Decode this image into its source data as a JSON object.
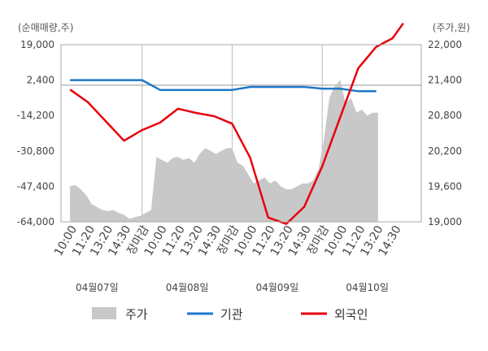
{
  "chart_data": {
    "type": "line",
    "left_axis_title": "(순매매량,주)",
    "right_axis_title": "(주가,원)",
    "left_ticks": [
      "19,000",
      "2,400",
      "-14,200",
      "-30,800",
      "-47,400",
      "-64,000"
    ],
    "left_tick_values": [
      19000,
      2400,
      -14200,
      -30800,
      -47400,
      -64000
    ],
    "ylim_left": [
      -64000,
      19000
    ],
    "right_ticks": [
      "22,000",
      "21,400",
      "20,800",
      "20,200",
      "19,600",
      "19,000"
    ],
    "right_tick_values": [
      22000,
      21400,
      20800,
      20200,
      19600,
      19000
    ],
    "ylim_right": [
      19000,
      22000
    ],
    "x_ticks": [
      "10:00",
      "11:20",
      "13:20",
      "14:30",
      "장마감",
      "10:00",
      "11:20",
      "13:20",
      "14:30",
      "장마감",
      "10:00",
      "11:20",
      "13:20",
      "14:30",
      "장마감",
      "10:00",
      "11:20",
      "13:20",
      "14:30"
    ],
    "x_tick_highlight": [
      false,
      false,
      false,
      false,
      true,
      false,
      false,
      false,
      false,
      true,
      false,
      false,
      false,
      false,
      true,
      false,
      false,
      false,
      false
    ],
    "highlight_color": "#e8000b",
    "day_labels": [
      "04월07일",
      "04월08일",
      "04월09일",
      "04월10일"
    ],
    "x_slots": 20,
    "series": [
      {
        "name": "주가",
        "kind": "area",
        "axis": "right",
        "color": "#c8c8c8",
        "x": [
          0,
          0.3,
          0.6,
          0.9,
          1.2,
          1.5,
          1.8,
          2.1,
          2.4,
          2.7,
          3.0,
          3.3,
          3.6,
          3.9,
          4.2,
          4.5,
          4.8,
          5.1,
          5.4,
          5.7,
          6.0,
          6.3,
          6.6,
          6.9,
          7.2,
          7.5,
          7.8,
          8.1,
          8.4,
          8.7,
          9.0,
          9.3,
          9.6,
          9.9,
          10.2,
          10.5,
          10.8,
          11.1,
          11.4,
          11.7,
          12.0,
          12.3,
          12.6,
          12.9,
          13.2,
          13.5,
          13.8,
          14.1,
          14.4,
          14.7,
          15.0,
          15.3,
          15.6,
          15.9,
          16.2,
          16.5,
          16.8,
          17.1
        ],
        "values": [
          19600,
          19620,
          19550,
          19450,
          19300,
          19250,
          19200,
          19180,
          19200,
          19150,
          19120,
          19050,
          19080,
          19100,
          19150,
          19200,
          20100,
          20050,
          20000,
          20080,
          20100,
          20050,
          20080,
          20000,
          20150,
          20250,
          20200,
          20150,
          20200,
          20250,
          20250,
          20000,
          19950,
          19800,
          19650,
          19700,
          19750,
          19650,
          19700,
          19600,
          19550,
          19550,
          19600,
          19650,
          19650,
          19700,
          19900,
          20400,
          21100,
          21300,
          21400,
          21000,
          21100,
          20850,
          20900,
          20800,
          20850,
          20850
        ]
      },
      {
        "name": "기관",
        "kind": "line",
        "axis": "left",
        "color": "#1e78c8",
        "x": [
          0,
          1,
          2,
          3,
          4,
          5,
          6,
          7,
          8,
          9,
          10,
          11,
          12,
          13,
          14,
          15,
          16,
          17
        ],
        "values": [
          2400,
          2400,
          2400,
          2400,
          2400,
          -2200,
          -2200,
          -2200,
          -2200,
          -2200,
          -800,
          -800,
          -800,
          -800,
          -1600,
          -1600,
          -2800,
          -2800
        ]
      },
      {
        "name": "외국인",
        "kind": "line",
        "axis": "left",
        "color": "#e8000b",
        "x": [
          0,
          1,
          2,
          3,
          4,
          5,
          6,
          7,
          8,
          9,
          10,
          11,
          12,
          13,
          14,
          15,
          16,
          17,
          17.9,
          18.5
        ],
        "values": [
          -2000,
          -8000,
          -17000,
          -26000,
          -21000,
          -17500,
          -11000,
          -13000,
          -14500,
          -18000,
          -34000,
          -62000,
          -65000,
          -57000,
          -38000,
          -15000,
          8000,
          18000,
          22000,
          29000
        ]
      }
    ]
  }
}
